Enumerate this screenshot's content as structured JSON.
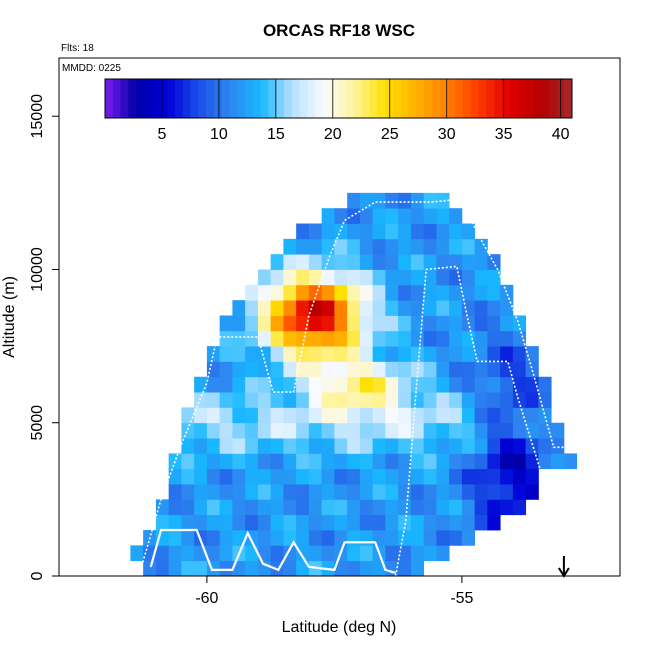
{
  "chart_data": {
    "type": "heatmap",
    "title": "ORCAS RF18 WSC",
    "flights_note": "Flts: 18",
    "date_note": "MMDD: 0225",
    "xlabel": "Latitude (deg N)",
    "ylabel": "Altitude (m)",
    "xlim": [
      -62.9,
      -51.9
    ],
    "ylim": [
      0,
      16900
    ],
    "x_ticks": [
      -60,
      -55
    ],
    "x_tick_labels": [
      "-60",
      "-55"
    ],
    "y_ticks": [
      0,
      5000,
      10000,
      15000
    ],
    "y_tick_labels": [
      "0",
      "5000",
      "10000",
      "15000"
    ],
    "colorbar": {
      "range": [
        0,
        41
      ],
      "ticks": [
        5,
        10,
        15,
        20,
        25,
        30,
        35,
        40
      ],
      "tick_labels": [
        "5",
        "10",
        "15",
        "20",
        "25",
        "30",
        "35",
        "40"
      ],
      "colors": [
        "#7a1cf0",
        "#0000a8",
        "#0000d8",
        "#1a4ee6",
        "#2e86f0",
        "#17b7ff",
        "#b5e0ff",
        "#f8fbff",
        "#fff4a0",
        "#ffe000",
        "#ffb000",
        "#ff8000",
        "#ff3a00",
        "#e00000",
        "#b40000",
        "#a52a2a"
      ]
    },
    "grid": false,
    "arrow_marker_x": -53.0,
    "field_model": {
      "bin_width_lat": 0.25,
      "bin_height_alt": 500,
      "background": 12,
      "warm_max": {
        "lat": -57.9,
        "alt": 8500,
        "value": 37
      },
      "warm_mid": {
        "lat": -57.0,
        "alt": 6200,
        "value": 24
      },
      "pale_band": {
        "alt": 5000,
        "value": 19
      },
      "cold_region": {
        "lat": -54.0,
        "alt": 4000,
        "value": 4
      }
    },
    "domain_outline": [
      [
        -61.5,
        300
      ],
      [
        -61.2,
        1400
      ],
      [
        -60.9,
        2600
      ],
      [
        -60.4,
        5400
      ],
      [
        -59.8,
        7900
      ],
      [
        -59.2,
        9200
      ],
      [
        -58.5,
        10900
      ],
      [
        -57.5,
        12200
      ],
      [
        -56.5,
        12500
      ],
      [
        -55.4,
        12300
      ],
      [
        -54.9,
        11600
      ],
      [
        -54.3,
        10200
      ],
      [
        -53.9,
        8700
      ],
      [
        -53.5,
        7000
      ],
      [
        -53.1,
        5000
      ],
      [
        -52.8,
        3700
      ],
      [
        -53.4,
        3300
      ],
      [
        -53.8,
        2200
      ],
      [
        -54.6,
        1400
      ],
      [
        -55.3,
        700
      ],
      [
        -56.0,
        0
      ],
      [
        -59.0,
        0
      ],
      [
        -61.0,
        200
      ]
    ],
    "flight_track": [
      [
        -61.3,
        200
      ],
      [
        -60.9,
        2500
      ],
      [
        -60.5,
        4300
      ],
      [
        -60.0,
        6300
      ],
      [
        -59.8,
        7800
      ],
      [
        -59.0,
        7800
      ],
      [
        -58.7,
        6000
      ],
      [
        -58.3,
        6000
      ],
      [
        -58.0,
        8500
      ],
      [
        -57.6,
        10400
      ],
      [
        -57.3,
        11600
      ],
      [
        -56.7,
        12200
      ],
      [
        -55.6,
        12200
      ],
      [
        -55.0,
        12300
      ],
      [
        -54.7,
        11200
      ],
      [
        -54.3,
        10000
      ],
      [
        -53.9,
        8300
      ],
      [
        -53.6,
        6600
      ],
      [
        -53.2,
        4200
      ],
      [
        -53.0,
        4200
      ]
    ],
    "flight_track_2": [
      [
        -56.3,
        0
      ],
      [
        -56.1,
        1800
      ],
      [
        -55.9,
        6000
      ],
      [
        -55.7,
        10000
      ],
      [
        -55.1,
        10100
      ],
      [
        -54.9,
        8500
      ],
      [
        -54.7,
        7000
      ],
      [
        -54.1,
        7000
      ],
      [
        -53.9,
        5800
      ],
      [
        -53.6,
        4200
      ],
      [
        -53.3,
        2600
      ],
      [
        -53.0,
        2600
      ]
    ],
    "low_level_track": [
      [
        -61.1,
        300
      ],
      [
        -60.9,
        1500
      ],
      [
        -60.2,
        1500
      ],
      [
        -59.9,
        200
      ],
      [
        -59.5,
        200
      ],
      [
        -59.2,
        1400
      ],
      [
        -58.9,
        400
      ],
      [
        -58.6,
        200
      ],
      [
        -58.3,
        1100
      ],
      [
        -58.0,
        300
      ],
      [
        -57.5,
        200
      ],
      [
        -57.3,
        1100
      ],
      [
        -56.7,
        1100
      ],
      [
        -56.5,
        200
      ],
      [
        -56.3,
        100
      ]
    ]
  }
}
